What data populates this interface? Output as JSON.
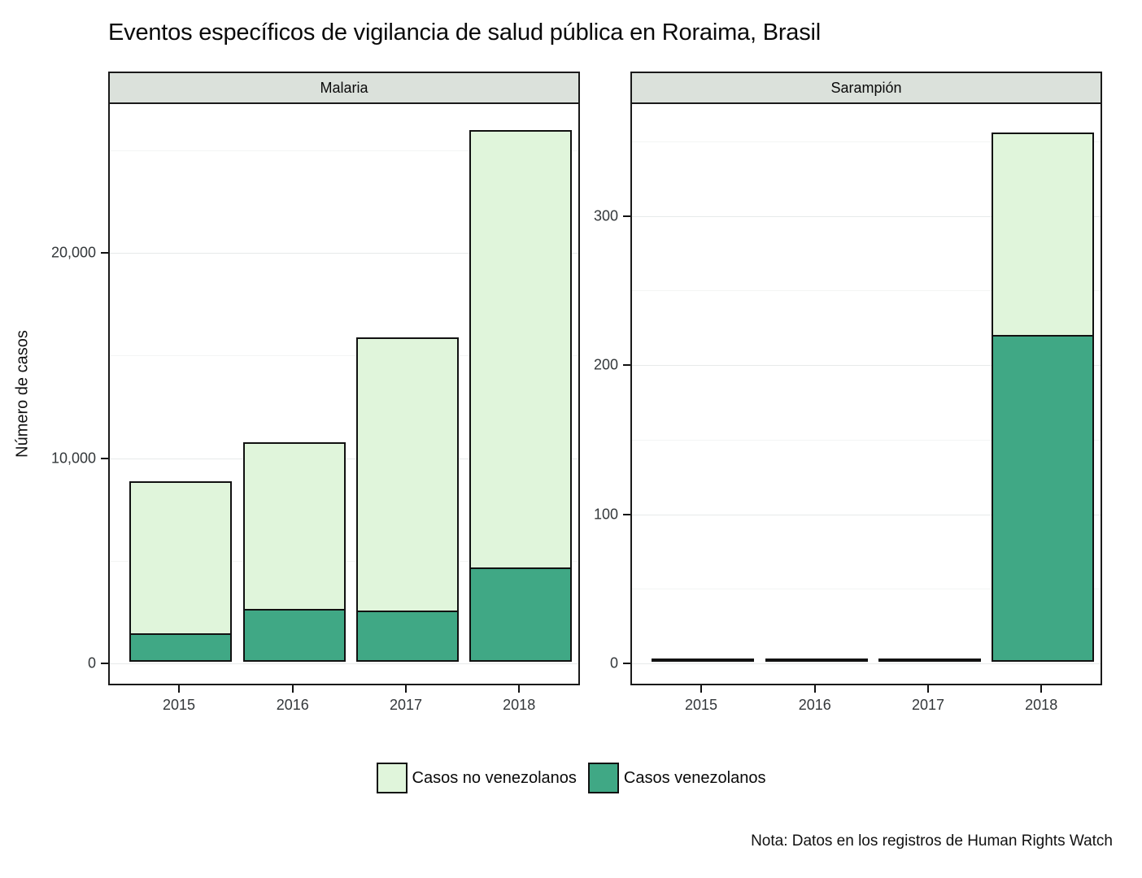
{
  "chart_data": {
    "type": "bar",
    "stacked": true,
    "title": "Eventos específicos de vigilancia de salud pública en Roraima, Brasil",
    "ylabel": "Número de casos",
    "xlabel": "",
    "categories": [
      "2015",
      "2016",
      "2017",
      "2018"
    ],
    "grid": "on",
    "legend_position": "bottom",
    "note": "Nota: Datos en los registros de Human Rights Watch",
    "colors": {
      "casos_no_venezolanos": "#e0f5db",
      "casos_venezolanos": "#40a885",
      "bar_outline": "#111111",
      "strip_background": "#dbe1db",
      "panel_border": "#1a1a1a"
    },
    "legend": [
      {
        "label": "Casos no venezolanos",
        "color": "#e0f5db"
      },
      {
        "label": "Casos venezolanos",
        "color": "#40a885"
      }
    ],
    "facets": [
      {
        "label": "Malaria",
        "ylim": [
          0,
          27250
        ],
        "yticks": [
          {
            "value": 0,
            "label": "0"
          },
          {
            "value": 10000,
            "label": "10,000"
          },
          {
            "value": 20000,
            "label": "20,000"
          }
        ],
        "yticks_minor": [
          5000,
          15000,
          25000
        ],
        "series": [
          {
            "name": "Casos venezolanos",
            "values": [
              1300,
              2500,
              2400,
              4500
            ]
          },
          {
            "name": "Casos no venezolanos",
            "values": [
              7500,
              8200,
              13400,
              21400
            ]
          }
        ],
        "totals": [
          8800,
          10700,
          15800,
          25900
        ]
      },
      {
        "label": "Sarampión",
        "ylim": [
          0,
          375
        ],
        "yticks": [
          {
            "value": 0,
            "label": "0"
          },
          {
            "value": 100,
            "label": "100"
          },
          {
            "value": 200,
            "label": "200"
          },
          {
            "value": 300,
            "label": "300"
          }
        ],
        "yticks_minor": [
          50,
          150,
          250,
          350
        ],
        "series": [
          {
            "name": "Casos venezolanos",
            "values": [
              0,
              0,
              0,
              218
            ]
          },
          {
            "name": "Casos no venezolanos",
            "values": [
              2,
              0,
              0,
              137
            ]
          }
        ],
        "totals": [
          2,
          0,
          0,
          355
        ]
      }
    ]
  }
}
